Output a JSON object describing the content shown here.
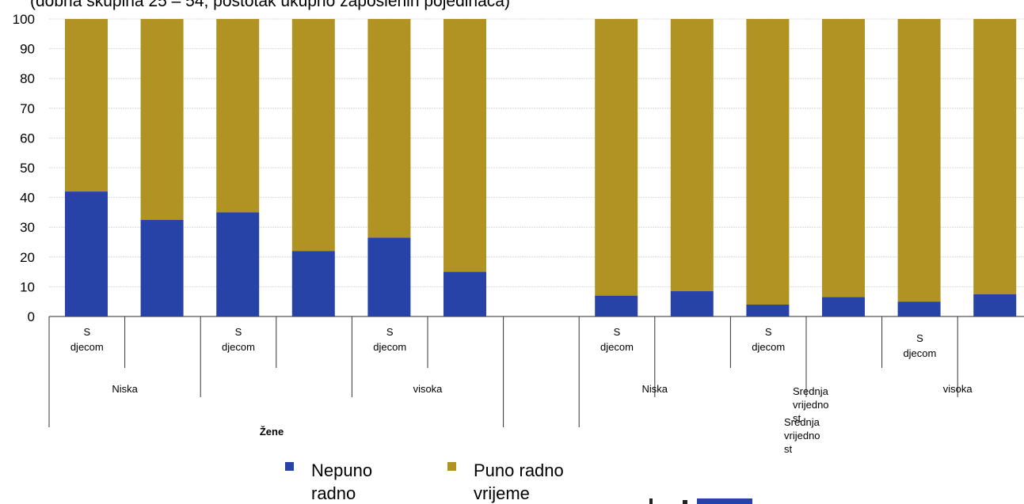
{
  "subtitle": "(dobna skupina 25 – 54, postotak ukupno zaposlenih pojedinaca)",
  "chart_data": {
    "type": "bar",
    "stacked": true,
    "ylim": [
      0,
      100
    ],
    "yticks": [
      0,
      10,
      20,
      30,
      40,
      50,
      60,
      70,
      80,
      90,
      100
    ],
    "grid": true,
    "legend_position": "bottom",
    "colors": {
      "Nepuno radno": "#2743a8",
      "Puno radno vrijeme": "#b09322"
    },
    "bars": [
      {
        "sub": "S djecom",
        "nepuno": 42,
        "puno": 58
      },
      {
        "sub": "",
        "nepuno": 32.5,
        "puno": 67.5
      },
      {
        "sub": "S djecom",
        "nepuno": 35,
        "puno": 65
      },
      {
        "sub": "",
        "nepuno": 22,
        "puno": 78
      },
      {
        "sub": "S djecom",
        "nepuno": 26.5,
        "puno": 73.5
      },
      {
        "sub": "",
        "nepuno": 15,
        "puno": 85
      },
      {
        "sub": "",
        "nepuno": null,
        "puno": null
      },
      {
        "sub": "S djecom",
        "nepuno": 7,
        "puno": 93
      },
      {
        "sub": "",
        "nepuno": 8.5,
        "puno": 91.5
      },
      {
        "sub": "S djecom",
        "nepuno": 4,
        "puno": 96
      },
      {
        "sub": "",
        "nepuno": 6.5,
        "puno": 93.5
      },
      {
        "sub": "S djecom",
        "nepuno": 5,
        "puno": 95
      },
      {
        "sub": "",
        "nepuno": 7.5,
        "puno": 92.5
      }
    ],
    "education_labels": [
      {
        "text": "Niska",
        "slots": [
          0,
          1
        ]
      },
      {
        "text": "visoka",
        "slots": [
          4,
          5
        ]
      },
      {
        "text": "Niska",
        "slots": [
          7,
          8
        ]
      },
      {
        "text": "Srednja vrijednost",
        "slots": [
          9,
          10
        ]
      },
      {
        "text": "visoka",
        "slots": [
          11,
          12
        ]
      }
    ],
    "overlap_label": "Srednja vrijednost",
    "gender_label": "Žene",
    "legend": [
      {
        "key": "Nepuno radno",
        "label_lines": [
          "Nepuno",
          "radno"
        ]
      },
      {
        "key": "Puno radno vrijeme",
        "label_lines": [
          "Puno radno",
          "vrijeme"
        ]
      }
    ]
  }
}
